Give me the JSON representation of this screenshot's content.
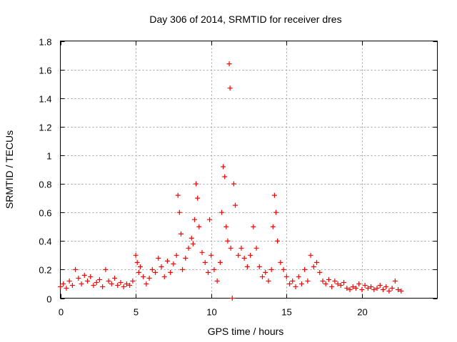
{
  "chart_data": {
    "type": "scatter",
    "title": "Day 306 of 2014, SRMTID for receiver dres",
    "xlabel": "GPS time / hours",
    "ylabel": "SRMTID / TECUs",
    "xlim": [
      0,
      25
    ],
    "ylim": [
      0,
      1.8
    ],
    "xticks": [
      0,
      5,
      10,
      15,
      20
    ],
    "xtick_labels": [
      "0",
      "5",
      "10",
      "15",
      "20"
    ],
    "yticks": [
      0,
      0.2,
      0.4,
      0.6,
      0.8,
      1.0,
      1.2,
      1.4,
      1.6,
      1.8
    ],
    "ytick_labels": [
      "0",
      "0.2",
      "0.4",
      "0.6",
      "0.8",
      "1",
      "1.2",
      "1.4",
      "1.6",
      "1.8"
    ],
    "grid": true,
    "marker": "+",
    "series": [
      {
        "name": "SRMTID",
        "color": "#ff0000",
        "x": [
          0.0,
          0.2,
          0.4,
          0.6,
          0.8,
          1.0,
          1.2,
          1.4,
          1.6,
          1.8,
          2.0,
          2.2,
          2.4,
          2.6,
          2.8,
          3.0,
          3.2,
          3.4,
          3.6,
          3.8,
          4.0,
          4.2,
          4.4,
          4.6,
          4.8,
          5.0,
          5.1,
          5.2,
          5.3,
          5.5,
          5.7,
          5.9,
          6.1,
          6.3,
          6.5,
          6.7,
          6.9,
          7.1,
          7.3,
          7.5,
          7.7,
          7.8,
          7.9,
          8.0,
          8.1,
          8.3,
          8.5,
          8.7,
          8.8,
          8.9,
          9.0,
          9.1,
          9.2,
          9.4,
          9.6,
          9.8,
          9.9,
          10.0,
          10.2,
          10.4,
          10.6,
          10.7,
          10.8,
          10.9,
          11.0,
          11.1,
          11.2,
          11.25,
          11.3,
          11.4,
          11.5,
          11.6,
          11.8,
          12.0,
          12.2,
          12.4,
          12.6,
          12.8,
          13.0,
          13.2,
          13.4,
          13.6,
          13.8,
          14.0,
          14.1,
          14.2,
          14.3,
          14.4,
          14.6,
          14.8,
          15.0,
          15.2,
          15.4,
          15.6,
          15.8,
          16.0,
          16.2,
          16.4,
          16.6,
          16.8,
          17.0,
          17.2,
          17.4,
          17.6,
          17.8,
          18.0,
          18.2,
          18.4,
          18.6,
          18.8,
          19.0,
          19.2,
          19.4,
          19.6,
          19.8,
          20.0,
          20.2,
          20.4,
          20.6,
          20.8,
          21.0,
          21.2,
          21.4,
          21.6,
          21.8,
          22.0,
          22.2,
          22.4,
          22.6
        ],
        "y": [
          0.08,
          0.1,
          0.07,
          0.12,
          0.09,
          0.2,
          0.14,
          0.1,
          0.16,
          0.12,
          0.15,
          0.09,
          0.11,
          0.13,
          0.08,
          0.2,
          0.12,
          0.1,
          0.14,
          0.09,
          0.11,
          0.08,
          0.1,
          0.09,
          0.12,
          0.3,
          0.25,
          0.18,
          0.22,
          0.15,
          0.1,
          0.14,
          0.2,
          0.18,
          0.28,
          0.22,
          0.15,
          0.26,
          0.18,
          0.24,
          0.3,
          0.72,
          0.6,
          0.45,
          0.2,
          0.28,
          0.35,
          0.42,
          0.38,
          0.55,
          0.8,
          0.7,
          0.5,
          0.32,
          0.25,
          0.18,
          0.55,
          0.3,
          0.2,
          0.12,
          0.25,
          0.6,
          0.92,
          0.85,
          0.5,
          0.4,
          1.64,
          1.47,
          0.35,
          0.0,
          0.8,
          0.65,
          0.3,
          0.35,
          0.28,
          0.22,
          0.3,
          0.5,
          0.35,
          0.22,
          0.15,
          0.18,
          0.12,
          0.2,
          0.5,
          0.72,
          0.6,
          0.4,
          0.25,
          0.2,
          0.15,
          0.1,
          0.12,
          0.08,
          0.15,
          0.1,
          0.2,
          0.12,
          0.3,
          0.22,
          0.25,
          0.18,
          0.12,
          0.1,
          0.13,
          0.08,
          0.12,
          0.1,
          0.09,
          0.11,
          0.07,
          0.06,
          0.08,
          0.07,
          0.1,
          0.06,
          0.09,
          0.07,
          0.08,
          0.06,
          0.07,
          0.09,
          0.06,
          0.08,
          0.05,
          0.07,
          0.12,
          0.06,
          0.05
        ]
      }
    ]
  }
}
